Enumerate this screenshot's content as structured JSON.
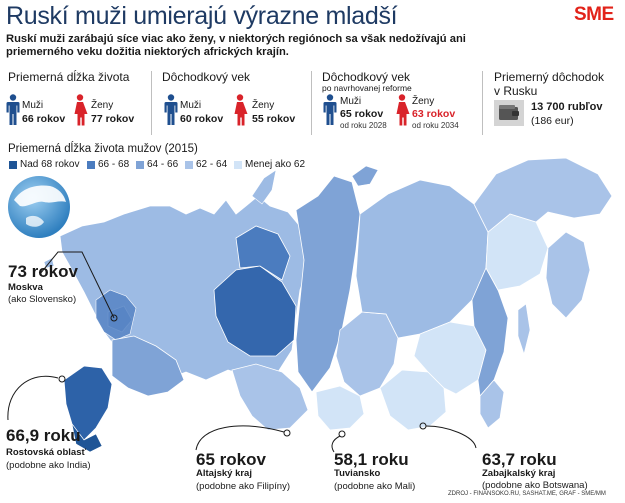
{
  "header": {
    "title": "Ruskí muži umierajú výrazne mladší",
    "logo": "SME",
    "subtitle": "Ruskí muži zarábajú síce viac ako ženy, v niektorých regiónoch sa však nedožívajú ani priemerného veku dožitia niektorých afrických krajín."
  },
  "stats": {
    "life_expectancy": {
      "heading": "Priemerná dĺžka života",
      "men_label": "Muži",
      "men_value": "66 rokov",
      "women_label": "Ženy",
      "women_value": "77 rokov"
    },
    "retirement_age": {
      "heading": "Dôchodkový vek",
      "men_label": "Muži",
      "men_value": "60 rokov",
      "women_label": "Ženy",
      "women_value": "55 rokov"
    },
    "proposed_retirement": {
      "heading": "Dôchodkový vek",
      "subheading": "po navrhovanej reforme",
      "men_label": "Muži",
      "men_value": "65 rokov",
      "men_since": "od roku 2028",
      "women_label": "Ženy",
      "women_value": "63 rokov",
      "women_since": "od roku 2034"
    },
    "pension": {
      "heading_line1": "Priemerný dôchodok",
      "heading_line2": "v Rusku",
      "value": "13 700 rubľov",
      "value_eur": "(186 eur)"
    }
  },
  "legend": {
    "title": "Priemerná dĺžka života mužov (2015)",
    "items": [
      {
        "label": "Nad 68 rokov",
        "color": "#1f5596"
      },
      {
        "label": "66 - 68",
        "color": "#4b7cbf"
      },
      {
        "label": "64 - 66",
        "color": "#7fa3d6"
      },
      {
        "label": "62 - 64",
        "color": "#a9c3e8"
      },
      {
        "label": "Menej ako 62",
        "color": "#d2e4f7"
      }
    ]
  },
  "callouts": {
    "moskva": {
      "value": "73 rokov",
      "name": "Moskva",
      "compare": "(ako Slovensko)"
    },
    "rostov": {
      "value": "66,9 roku",
      "name": "Rostovská oblasť",
      "compare": "(podobne ako India)"
    },
    "altaj": {
      "value": "65 rokov",
      "name": "Altajský kraj",
      "compare": "(podobne ako Filipíny)"
    },
    "tuva": {
      "value": "58,1 roku",
      "name": "Tuviansko",
      "compare": "(podobne ako Mali)"
    },
    "zabajkal": {
      "value": "63,7 roku",
      "name": "Zabajkalský kraj",
      "compare": "(podobne ako Botswana)"
    }
  },
  "colors": {
    "male": "#1f4f8f",
    "female": "#d9232a",
    "title": "#1e3a63",
    "logo": "#e2231a"
  },
  "source": "ZDROJ - FINANSOKO.RU, SASHAT.ME, GRAF - SME/MM"
}
